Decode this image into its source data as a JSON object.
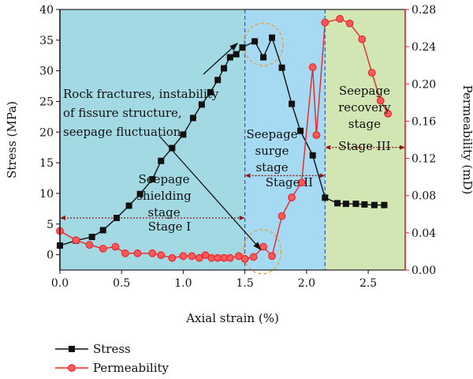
{
  "chart_data": {
    "type": "line",
    "xlabel": "Axial strain (%)",
    "ylabel_left": "Stress (MPa)",
    "ylabel_right": "Permeability (mD)",
    "xlim": [
      0,
      2.8
    ],
    "ylim_left": [
      -2.5,
      40
    ],
    "ylim_right": [
      0,
      0.28
    ],
    "x_ticks": [
      "0.0",
      "0.5",
      "1.0",
      "1.5",
      "2.0",
      "2.5"
    ],
    "x_tick_values": [
      0,
      0.5,
      1.0,
      1.5,
      2.0,
      2.5
    ],
    "y_left_ticks": [
      "0",
      "5",
      "10",
      "15",
      "20",
      "25",
      "30",
      "35",
      "40"
    ],
    "y_left_tick_values": [
      0,
      5,
      10,
      15,
      20,
      25,
      30,
      35,
      40
    ],
    "y_right_ticks": [
      "0.00",
      "0.04",
      "0.08",
      "0.12",
      "0.16",
      "0.20",
      "0.24",
      "0.28"
    ],
    "y_right_tick_values": [
      0,
      0.04,
      0.08,
      0.12,
      0.16,
      0.2,
      0.24,
      0.28
    ],
    "regions": [
      {
        "x_start": 0,
        "x_end": 1.5,
        "color": "#a3d9e3"
      },
      {
        "x_start": 1.5,
        "x_end": 2.15,
        "color": "#a6d9f2"
      },
      {
        "x_start": 2.15,
        "x_end": 2.8,
        "color": "#d2e6b4"
      }
    ],
    "series": [
      {
        "name": "Stress",
        "axis": "left",
        "color": "#111111",
        "marker": "square",
        "points": [
          [
            0.0,
            1.5
          ],
          [
            0.13,
            2.3
          ],
          [
            0.26,
            2.9
          ],
          [
            0.35,
            4.0
          ],
          [
            0.46,
            6.0
          ],
          [
            0.56,
            8.0
          ],
          [
            0.65,
            9.9
          ],
          [
            0.75,
            12.3
          ],
          [
            0.82,
            15.3
          ],
          [
            0.91,
            17.4
          ],
          [
            1.0,
            19.6
          ],
          [
            1.08,
            22.3
          ],
          [
            1.15,
            24.5
          ],
          [
            1.22,
            26.5
          ],
          [
            1.28,
            28.5
          ],
          [
            1.33,
            30.4
          ],
          [
            1.38,
            32.2
          ],
          [
            1.43,
            32.7
          ],
          [
            1.48,
            33.8
          ],
          [
            1.58,
            34.8
          ],
          [
            1.65,
            32.2
          ],
          [
            1.72,
            35.4
          ],
          [
            1.8,
            30.5
          ],
          [
            1.88,
            24.6
          ],
          [
            1.95,
            20.2
          ],
          [
            2.05,
            16.2
          ],
          [
            2.15,
            9.3
          ],
          [
            2.25,
            8.4
          ],
          [
            2.32,
            8.3
          ],
          [
            2.4,
            8.3
          ],
          [
            2.47,
            8.2
          ],
          [
            2.55,
            8.1
          ],
          [
            2.63,
            8.1
          ]
        ]
      },
      {
        "name": "Permeability",
        "axis": "right",
        "color": "#e8262a",
        "marker": "circle",
        "points": [
          [
            0.0,
            0.042
          ],
          [
            0.13,
            0.032
          ],
          [
            0.24,
            0.027
          ],
          [
            0.35,
            0.023
          ],
          [
            0.45,
            0.025
          ],
          [
            0.53,
            0.018
          ],
          [
            0.63,
            0.018
          ],
          [
            0.75,
            0.018
          ],
          [
            0.82,
            0.016
          ],
          [
            0.91,
            0.013
          ],
          [
            1.0,
            0.015
          ],
          [
            1.07,
            0.015
          ],
          [
            1.13,
            0.013
          ],
          [
            1.18,
            0.016
          ],
          [
            1.23,
            0.013
          ],
          [
            1.28,
            0.013
          ],
          [
            1.33,
            0.013
          ],
          [
            1.38,
            0.013
          ],
          [
            1.45,
            0.015
          ],
          [
            1.5,
            0.012
          ],
          [
            1.57,
            0.014
          ],
          [
            1.65,
            0.025
          ],
          [
            1.72,
            0.015
          ],
          [
            1.8,
            0.058
          ],
          [
            1.88,
            0.078
          ],
          [
            1.96,
            0.094
          ],
          [
            2.05,
            0.218
          ],
          [
            2.08,
            0.145
          ],
          [
            2.15,
            0.266
          ],
          [
            2.27,
            0.27
          ],
          [
            2.35,
            0.265
          ],
          [
            2.45,
            0.248
          ],
          [
            2.53,
            0.212
          ],
          [
            2.6,
            0.182
          ],
          [
            2.66,
            0.168
          ]
        ]
      }
    ],
    "annotations": {
      "left_text": [
        "Rock fractures, instability",
        "of fissure structure,",
        "seepage fluctuation"
      ],
      "shielding_text": [
        "Seepage",
        "shielding",
        "stage"
      ],
      "surge_text": [
        "Seepage",
        "surge",
        "stage"
      ],
      "recovery_text": [
        "Seepage",
        "recovery",
        "stage"
      ],
      "stage1": "Stage I",
      "stage2": "Stage II",
      "stage3": "Stage III"
    },
    "grid": false,
    "legend": "bottom-left"
  }
}
